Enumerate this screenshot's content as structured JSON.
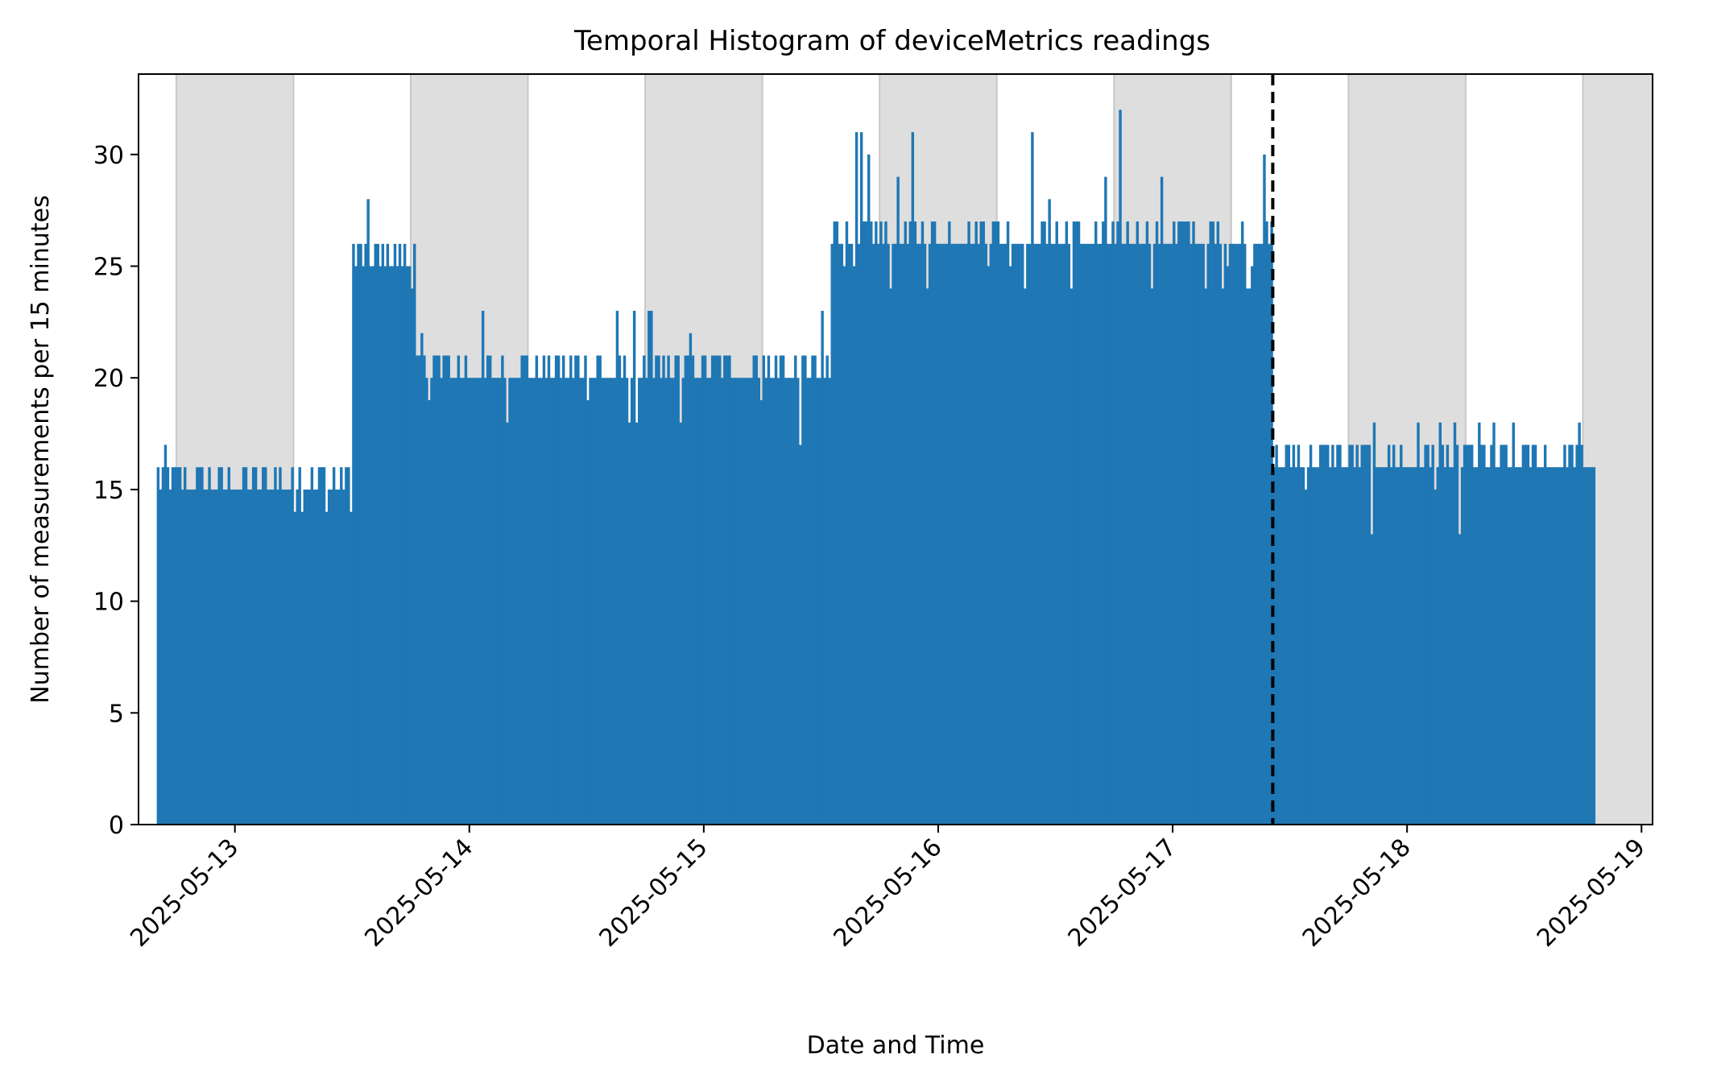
{
  "chart_data": {
    "type": "bar",
    "title": "Temporal Histogram of deviceMetrics readings",
    "xlabel": "Date and Time",
    "ylabel": "Number of measurements per 15 minutes",
    "bin_minutes": 15,
    "x_range": [
      "2025-05-12 14:08",
      "2025-05-19 01:08"
    ],
    "ylim": [
      0,
      33.6
    ],
    "x_ticks": [
      "2025-05-13",
      "2025-05-14",
      "2025-05-15",
      "2025-05-16",
      "2025-05-17",
      "2025-05-18",
      "2025-05-19"
    ],
    "y_ticks": [
      0,
      5,
      10,
      15,
      20,
      25,
      30
    ],
    "grid": false,
    "legend": "none",
    "bar_color": "#1f77b4",
    "shade_color": "#dedede",
    "night_shading": [
      [
        "2025-05-12 18:00",
        "2025-05-13 06:00"
      ],
      [
        "2025-05-13 18:00",
        "2025-05-14 06:00"
      ],
      [
        "2025-05-14 18:00",
        "2025-05-15 06:00"
      ],
      [
        "2025-05-15 18:00",
        "2025-05-16 06:00"
      ],
      [
        "2025-05-16 18:00",
        "2025-05-17 06:00"
      ],
      [
        "2025-05-17 18:00",
        "2025-05-18 06:00"
      ],
      [
        "2025-05-18 18:00",
        "2025-05-19 01:08"
      ]
    ],
    "vline": {
      "x": "2025-05-17 10:15",
      "style": "dashed",
      "color": "#000000"
    },
    "segments": [
      {
        "start": "2025-05-12 16:00",
        "end": "2025-05-13 12:00",
        "base": 15,
        "peak": 17,
        "low": 15
      },
      {
        "start": "2025-05-13 12:00",
        "end": "2025-05-13 18:30",
        "base": 25,
        "peak": 30,
        "low": 25
      },
      {
        "start": "2025-05-13 18:30",
        "end": "2025-05-15 13:00",
        "base": 20,
        "peak": 23,
        "low": 17
      },
      {
        "start": "2025-05-15 13:00",
        "end": "2025-05-17 10:15",
        "base": 26,
        "peak": 32,
        "low": 24
      },
      {
        "start": "2025-05-17 10:15",
        "end": "2025-05-18 19:15",
        "base": 16,
        "peak": 18,
        "low": 13
      }
    ]
  }
}
